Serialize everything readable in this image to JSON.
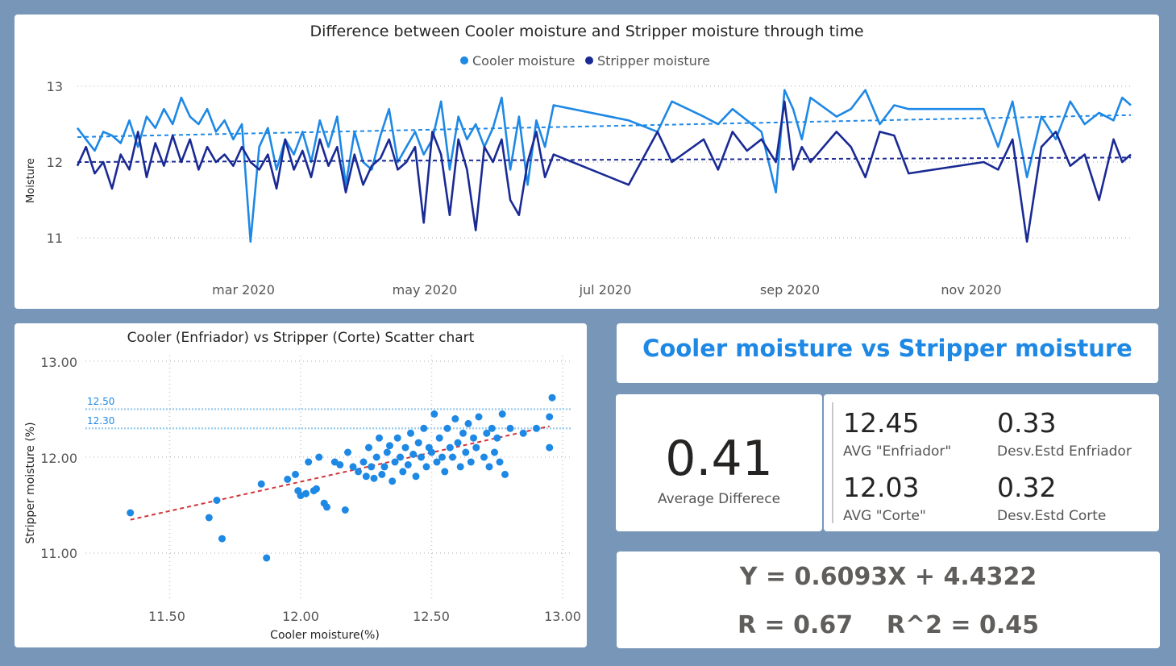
{
  "colors": {
    "cooler": "#1e88e5",
    "stripper": "#1a2a94",
    "trend_scatter": "#d13438",
    "ref_line": "#9fcdf0",
    "title_blue": "#1e88e5"
  },
  "line_chart": {
    "title": "Difference between Cooler moisture and Stripper moisture through time",
    "y_axis_label": "Moisture",
    "legend": {
      "cooler": "Cooler moisture",
      "stripper": "Stripper moisture"
    },
    "y_ticks": [
      "13",
      "12",
      "11"
    ],
    "x_ticks": [
      "mar 2020",
      "may 2020",
      "jul 2020",
      "sep 2020",
      "nov 2020"
    ]
  },
  "scatter_chart": {
    "title": "Cooler (Enfriador) vs Stripper (Corte) Scatter chart",
    "x_axis_label": "Cooler moisture(%)",
    "y_axis_label": "Stripper moisture (%)",
    "x_ticks": [
      "11.50",
      "12.00",
      "12.50",
      "13.00"
    ],
    "y_ticks": [
      "13.00",
      "12.00",
      "11.00"
    ],
    "ref_labels": [
      "12.50",
      "12.30"
    ]
  },
  "kpi": {
    "title": "Cooler moisture vs Stripper moisture",
    "avg_diff_value": "0.41",
    "avg_diff_label": "Average Differece",
    "avg_enfriador_value": "12.45",
    "avg_enfriador_label": "AVG \"Enfriador\"",
    "std_enfriador_value": "0.33",
    "std_enfriador_label": "Desv.Estd Enfriador",
    "avg_corte_value": "12.03",
    "avg_corte_label": "AVG \"Corte\"",
    "std_corte_value": "0.32",
    "std_corte_label": "Desv.Estd Corte"
  },
  "equation": {
    "line1": "Y = 0.6093X + 4.4322",
    "line2": "R = 0.67    R^2 = 0.45"
  },
  "chart_data": [
    {
      "type": "line",
      "x_range": [
        "2020-01-01",
        "2020-12-31"
      ],
      "ylim": [
        11,
        13
      ],
      "grid": true,
      "legend_position": "top-center",
      "trendlines": {
        "cooler": [
          12.33,
          12.62
        ],
        "stripper": [
          12.0,
          12.06
        ]
      },
      "series": [
        {
          "name": "Cooler moisture",
          "x": [
            "2020-01-01",
            "2020-01-04",
            "2020-01-07",
            "2020-01-10",
            "2020-01-13",
            "2020-01-16",
            "2020-01-19",
            "2020-01-22",
            "2020-01-25",
            "2020-01-28",
            "2020-01-31",
            "2020-02-03",
            "2020-02-06",
            "2020-02-09",
            "2020-02-12",
            "2020-02-15",
            "2020-02-18",
            "2020-02-21",
            "2020-02-24",
            "2020-02-27",
            "2020-03-01",
            "2020-03-04",
            "2020-03-07",
            "2020-03-10",
            "2020-03-13",
            "2020-03-16",
            "2020-03-19",
            "2020-03-22",
            "2020-03-25",
            "2020-03-28",
            "2020-03-31",
            "2020-04-03",
            "2020-04-06",
            "2020-04-09",
            "2020-04-12",
            "2020-04-15",
            "2020-04-18",
            "2020-04-21",
            "2020-04-24",
            "2020-04-27",
            "2020-04-30",
            "2020-05-03",
            "2020-05-06",
            "2020-05-09",
            "2020-05-12",
            "2020-05-15",
            "2020-05-18",
            "2020-05-21",
            "2020-05-24",
            "2020-05-27",
            "2020-05-30",
            "2020-06-02",
            "2020-06-05",
            "2020-06-08",
            "2020-06-11",
            "2020-06-14",
            "2020-07-10",
            "2020-07-20",
            "2020-07-25",
            "2020-08-05",
            "2020-08-10",
            "2020-08-15",
            "2020-08-20",
            "2020-08-25",
            "2020-08-30",
            "2020-09-02",
            "2020-09-05",
            "2020-09-08",
            "2020-09-11",
            "2020-09-20",
            "2020-09-25",
            "2020-09-30",
            "2020-10-05",
            "2020-10-10",
            "2020-10-15",
            "2020-11-10",
            "2020-11-15",
            "2020-11-20",
            "2020-11-25",
            "2020-11-30",
            "2020-12-05",
            "2020-12-10",
            "2020-12-15",
            "2020-12-20",
            "2020-12-25",
            "2020-12-28",
            "2020-12-31"
          ],
          "values": [
            12.45,
            12.3,
            12.15,
            12.4,
            12.35,
            12.25,
            12.55,
            12.2,
            12.6,
            12.45,
            12.7,
            12.5,
            12.85,
            12.6,
            12.5,
            12.7,
            12.4,
            12.55,
            12.3,
            12.5,
            10.95,
            12.2,
            12.45,
            11.9,
            12.3,
            12.1,
            12.4,
            12.0,
            12.55,
            12.2,
            12.6,
            11.7,
            12.4,
            12.0,
            11.9,
            12.35,
            12.7,
            12.0,
            12.2,
            12.4,
            12.1,
            12.3,
            12.8,
            11.9,
            12.6,
            12.3,
            12.5,
            12.2,
            12.45,
            12.85,
            11.9,
            12.6,
            11.7,
            12.55,
            12.2,
            12.75,
            12.55,
            12.4,
            12.8,
            12.6,
            12.5,
            12.7,
            12.55,
            12.4,
            11.6,
            12.95,
            12.7,
            12.3,
            12.85,
            12.6,
            12.7,
            12.95,
            12.5,
            12.75,
            12.7,
            12.7,
            12.2,
            12.8,
            11.8,
            12.6,
            12.3,
            12.8,
            12.5,
            12.65,
            12.55,
            12.85,
            12.75
          ]
        },
        {
          "name": "Stripper moisture",
          "x": [
            "2020-01-01",
            "2020-01-04",
            "2020-01-07",
            "2020-01-10",
            "2020-01-13",
            "2020-01-16",
            "2020-01-19",
            "2020-01-22",
            "2020-01-25",
            "2020-01-28",
            "2020-01-31",
            "2020-02-03",
            "2020-02-06",
            "2020-02-09",
            "2020-02-12",
            "2020-02-15",
            "2020-02-18",
            "2020-02-21",
            "2020-02-24",
            "2020-02-27",
            "2020-03-01",
            "2020-03-04",
            "2020-03-07",
            "2020-03-10",
            "2020-03-13",
            "2020-03-16",
            "2020-03-19",
            "2020-03-22",
            "2020-03-25",
            "2020-03-28",
            "2020-03-31",
            "2020-04-03",
            "2020-04-06",
            "2020-04-09",
            "2020-04-12",
            "2020-04-15",
            "2020-04-18",
            "2020-04-21",
            "2020-04-24",
            "2020-04-27",
            "2020-04-30",
            "2020-05-03",
            "2020-05-06",
            "2020-05-09",
            "2020-05-12",
            "2020-05-15",
            "2020-05-18",
            "2020-05-21",
            "2020-05-24",
            "2020-05-27",
            "2020-05-30",
            "2020-06-02",
            "2020-06-05",
            "2020-06-08",
            "2020-06-11",
            "2020-06-14",
            "2020-07-10",
            "2020-07-20",
            "2020-07-25",
            "2020-08-05",
            "2020-08-10",
            "2020-08-15",
            "2020-08-20",
            "2020-08-25",
            "2020-08-30",
            "2020-09-02",
            "2020-09-05",
            "2020-09-08",
            "2020-09-11",
            "2020-09-20",
            "2020-09-25",
            "2020-09-30",
            "2020-10-05",
            "2020-10-10",
            "2020-10-15",
            "2020-11-10",
            "2020-11-15",
            "2020-11-20",
            "2020-11-25",
            "2020-11-30",
            "2020-12-05",
            "2020-12-10",
            "2020-12-15",
            "2020-12-20",
            "2020-12-25",
            "2020-12-28",
            "2020-12-31"
          ],
          "values": [
            11.95,
            12.2,
            11.85,
            12.0,
            11.65,
            12.1,
            11.9,
            12.4,
            11.8,
            12.25,
            11.95,
            12.35,
            12.0,
            12.3,
            11.9,
            12.2,
            12.0,
            12.1,
            11.95,
            12.2,
            12.0,
            11.9,
            12.1,
            11.65,
            12.3,
            11.9,
            12.15,
            11.8,
            12.3,
            11.95,
            12.2,
            11.6,
            12.1,
            11.7,
            11.95,
            12.05,
            12.3,
            11.9,
            12.0,
            12.2,
            11.2,
            12.4,
            12.1,
            11.3,
            12.3,
            11.9,
            11.1,
            12.2,
            12.0,
            12.3,
            11.5,
            11.3,
            12.0,
            12.4,
            11.8,
            12.1,
            11.7,
            12.4,
            12.0,
            12.3,
            11.9,
            12.4,
            12.15,
            12.3,
            12.0,
            12.8,
            11.9,
            12.2,
            12.0,
            12.4,
            12.2,
            11.8,
            12.4,
            12.35,
            11.85,
            12.0,
            11.9,
            12.3,
            10.95,
            12.2,
            12.4,
            11.95,
            12.1,
            11.5,
            12.3,
            12.0,
            12.1
          ]
        }
      ]
    },
    {
      "type": "scatter",
      "xlim": [
        11.3,
        13.0
      ],
      "ylim": [
        10.8,
        13.0
      ],
      "grid": true,
      "reference_lines": [
        12.5,
        12.3
      ],
      "trendline": {
        "slope": 0.6093,
        "intercept": 4.4322,
        "x_range": [
          11.35,
          12.95
        ]
      },
      "points": [
        [
          11.35,
          11.42
        ],
        [
          11.65,
          11.37
        ],
        [
          11.68,
          11.55
        ],
        [
          11.7,
          11.15
        ],
        [
          11.85,
          11.72
        ],
        [
          11.87,
          10.95
        ],
        [
          11.95,
          11.77
        ],
        [
          11.98,
          11.82
        ],
        [
          11.99,
          11.65
        ],
        [
          12.0,
          11.6
        ],
        [
          12.02,
          11.62
        ],
        [
          12.03,
          11.95
        ],
        [
          12.05,
          11.65
        ],
        [
          12.06,
          11.67
        ],
        [
          12.07,
          12.0
        ],
        [
          12.09,
          11.52
        ],
        [
          12.1,
          11.48
        ],
        [
          12.13,
          11.95
        ],
        [
          12.15,
          11.92
        ],
        [
          12.17,
          11.45
        ],
        [
          12.18,
          12.05
        ],
        [
          12.2,
          11.9
        ],
        [
          12.22,
          11.85
        ],
        [
          12.24,
          11.95
        ],
        [
          12.25,
          11.8
        ],
        [
          12.26,
          12.1
        ],
        [
          12.27,
          11.9
        ],
        [
          12.28,
          11.78
        ],
        [
          12.29,
          12.0
        ],
        [
          12.3,
          12.2
        ],
        [
          12.31,
          11.82
        ],
        [
          12.32,
          11.9
        ],
        [
          12.33,
          12.05
        ],
        [
          12.34,
          12.12
        ],
        [
          12.35,
          11.75
        ],
        [
          12.36,
          11.95
        ],
        [
          12.37,
          12.2
        ],
        [
          12.38,
          12.0
        ],
        [
          12.39,
          11.85
        ],
        [
          12.4,
          12.1
        ],
        [
          12.41,
          11.92
        ],
        [
          12.42,
          12.25
        ],
        [
          12.43,
          12.03
        ],
        [
          12.44,
          11.8
        ],
        [
          12.45,
          12.15
        ],
        [
          12.46,
          12.0
        ],
        [
          12.47,
          12.3
        ],
        [
          12.48,
          11.9
        ],
        [
          12.49,
          12.1
        ],
        [
          12.5,
          12.05
        ],
        [
          12.51,
          12.45
        ],
        [
          12.52,
          11.95
        ],
        [
          12.53,
          12.2
        ],
        [
          12.54,
          12.0
        ],
        [
          12.55,
          11.85
        ],
        [
          12.56,
          12.3
        ],
        [
          12.57,
          12.1
        ],
        [
          12.58,
          12.0
        ],
        [
          12.59,
          12.4
        ],
        [
          12.6,
          12.15
        ],
        [
          12.61,
          11.9
        ],
        [
          12.62,
          12.25
        ],
        [
          12.63,
          12.05
        ],
        [
          12.64,
          12.35
        ],
        [
          12.65,
          11.95
        ],
        [
          12.66,
          12.2
        ],
        [
          12.67,
          12.1
        ],
        [
          12.68,
          12.42
        ],
        [
          12.7,
          12.0
        ],
        [
          12.71,
          12.25
        ],
        [
          12.72,
          11.9
        ],
        [
          12.73,
          12.3
        ],
        [
          12.74,
          12.05
        ],
        [
          12.75,
          12.2
        ],
        [
          12.76,
          11.95
        ],
        [
          12.77,
          12.45
        ],
        [
          12.78,
          11.82
        ],
        [
          12.8,
          12.3
        ],
        [
          12.85,
          12.25
        ],
        [
          12.9,
          12.3
        ],
        [
          12.95,
          12.42
        ],
        [
          12.95,
          12.1
        ],
        [
          12.96,
          12.62
        ]
      ]
    }
  ]
}
